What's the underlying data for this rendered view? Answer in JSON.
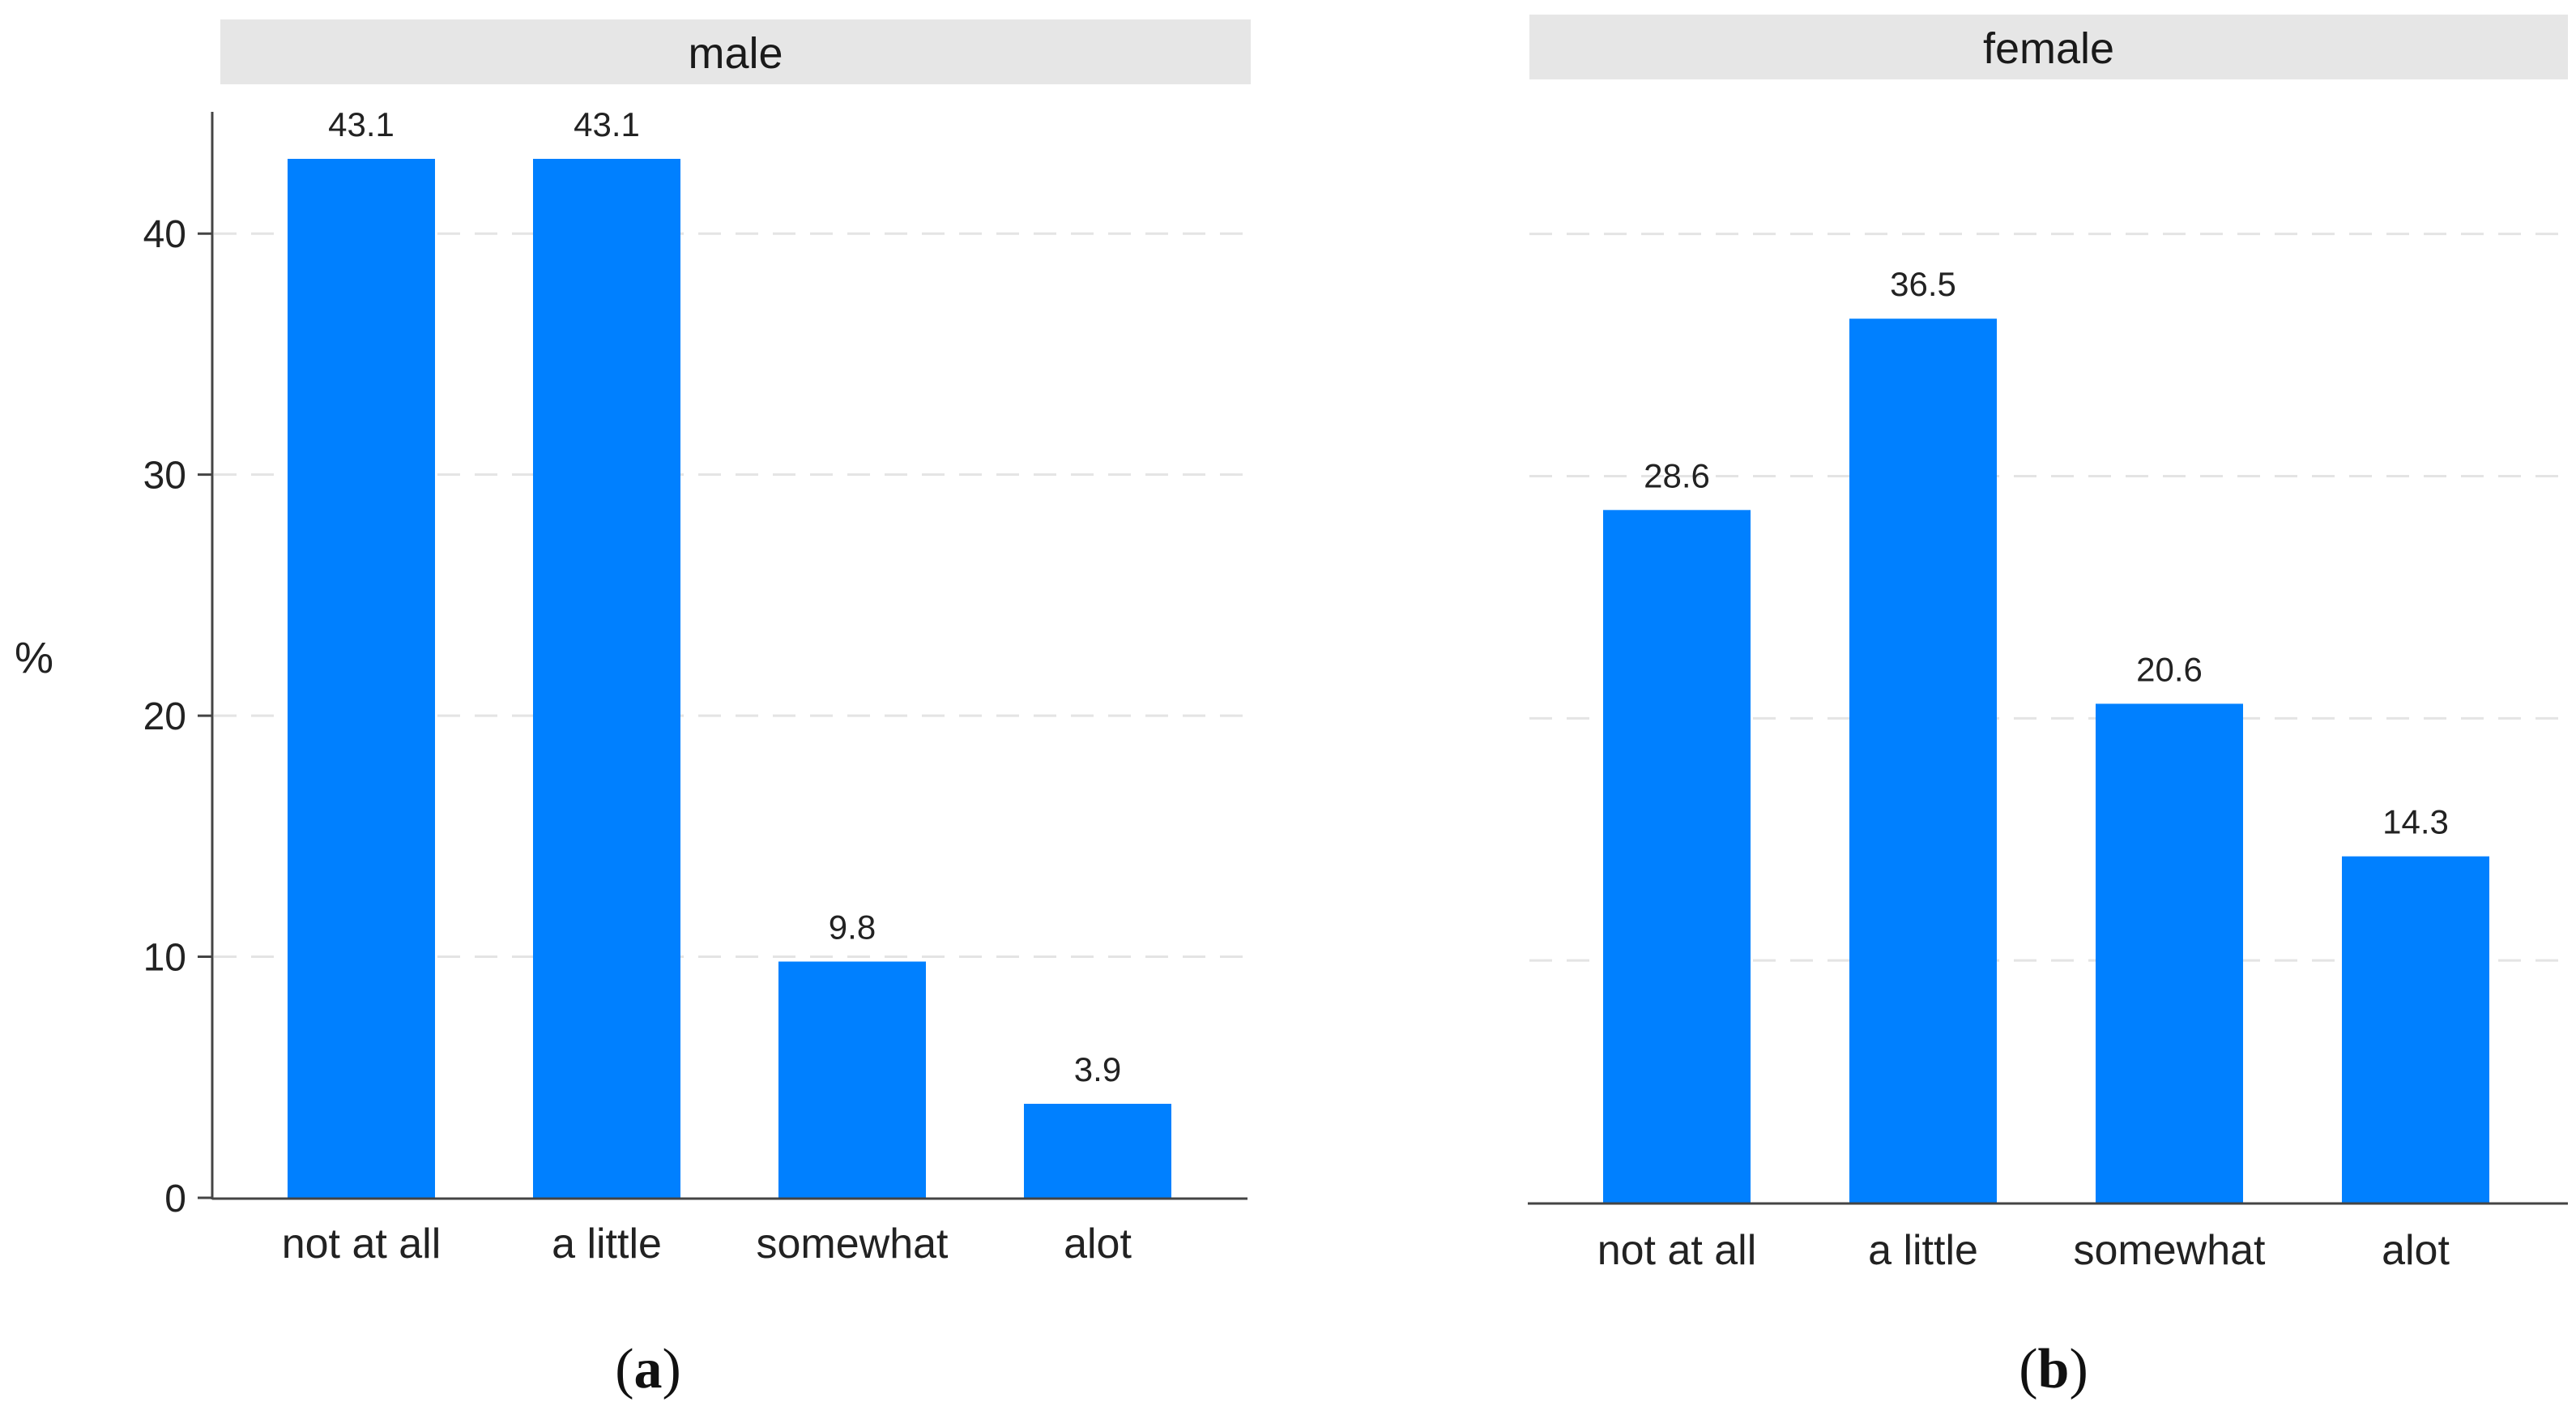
{
  "chart_data": [
    {
      "type": "bar",
      "panel_label": "a",
      "title": "male",
      "ylabel": "%",
      "xlabel": "",
      "categories": [
        "not at all",
        "a little",
        "somewhat",
        "alot"
      ],
      "values": [
        43.1,
        43.1,
        9.8,
        3.9
      ],
      "value_labels": [
        "43.1",
        "43.1",
        "9.8",
        "3.9"
      ],
      "ylim": [
        0,
        45
      ],
      "yticks": [
        0,
        10,
        20,
        30,
        40
      ],
      "ytick_labels": [
        "0",
        "10",
        "20",
        "30",
        "40"
      ],
      "grid": true,
      "bar_color": "#0080FF"
    },
    {
      "type": "bar",
      "panel_label": "b",
      "title": "female",
      "ylabel": "",
      "xlabel": "",
      "categories": [
        "not at all",
        "a little",
        "somewhat",
        "alot"
      ],
      "values": [
        28.6,
        36.5,
        20.6,
        14.3
      ],
      "value_labels": [
        "28.6",
        "36.5",
        "20.6",
        "14.3"
      ],
      "ylim": [
        0,
        45
      ],
      "yticks": [
        0,
        10,
        20,
        30,
        40
      ],
      "ytick_labels": [],
      "grid": true,
      "bar_color": "#0080FF"
    }
  ],
  "colors": {
    "strip": "#E6E6E6",
    "grid": "#E4E4E4",
    "axis": "#444444"
  },
  "paren_open": "(",
  "paren_close": ")"
}
